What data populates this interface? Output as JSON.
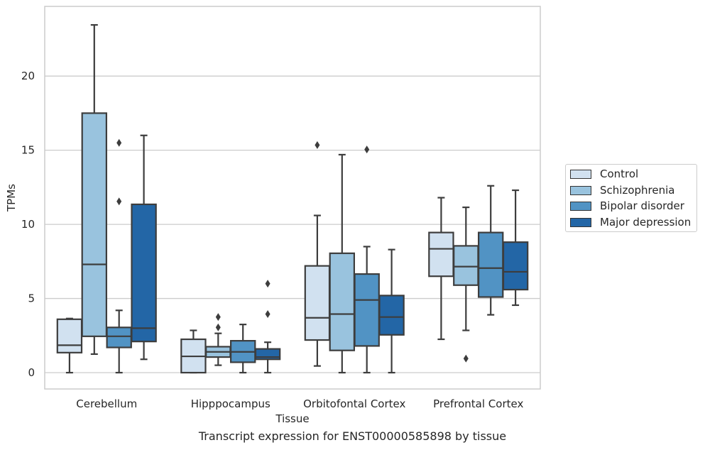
{
  "chart_data": {
    "type": "box",
    "title": "",
    "xlabel": "Tissue",
    "ylabel": "TPMs",
    "caption": "Transcript expression for ENST00000585898 by tissue",
    "ylim": [
      -1.1,
      24.7
    ],
    "yticks": [
      0,
      5,
      10,
      15,
      20
    ],
    "categories": [
      "Cerebellum",
      "Hipppocampus",
      "Orbitofontal Cortex",
      "Prefrontal Cortex"
    ],
    "grid": true,
    "legend_position": "right",
    "series": [
      {
        "name": "Control",
        "color": "#d1e1f0",
        "boxes": [
          {
            "whisker_low": 0.0,
            "q1": 1.35,
            "median": 1.85,
            "q3": 3.6,
            "whisker_high": 3.65,
            "outliers": []
          },
          {
            "whisker_low": 0.0,
            "q1": 0.0,
            "median": 1.1,
            "q3": 2.25,
            "whisker_high": 2.85,
            "outliers": []
          },
          {
            "whisker_low": 0.45,
            "q1": 2.2,
            "median": 3.7,
            "q3": 7.2,
            "whisker_high": 10.6,
            "outliers": [
              15.35
            ]
          },
          {
            "whisker_low": 2.25,
            "q1": 6.5,
            "median": 8.35,
            "q3": 9.45,
            "whisker_high": 11.8,
            "outliers": []
          }
        ]
      },
      {
        "name": "Schizophrenia",
        "color": "#99c3de",
        "boxes": [
          {
            "whisker_low": 1.25,
            "q1": 2.45,
            "median": 7.3,
            "q3": 17.5,
            "whisker_high": 23.45,
            "outliers": []
          },
          {
            "whisker_low": 0.5,
            "q1": 1.05,
            "median": 1.4,
            "q3": 1.75,
            "whisker_high": 2.65,
            "outliers": [
              3.05,
              3.75
            ]
          },
          {
            "whisker_low": 0.0,
            "q1": 1.5,
            "median": 3.95,
            "q3": 8.05,
            "whisker_high": 14.7,
            "outliers": []
          },
          {
            "whisker_low": 2.85,
            "q1": 5.9,
            "median": 7.15,
            "q3": 8.55,
            "whisker_high": 11.15,
            "outliers": [
              0.95
            ]
          }
        ]
      },
      {
        "name": "Bipolar disorder",
        "color": "#5193c4",
        "boxes": [
          {
            "whisker_low": 0.0,
            "q1": 1.7,
            "median": 2.45,
            "q3": 3.05,
            "whisker_high": 4.2,
            "outliers": [
              11.55,
              15.5
            ]
          },
          {
            "whisker_low": 0.0,
            "q1": 0.7,
            "median": 1.4,
            "q3": 2.15,
            "whisker_high": 3.25,
            "outliers": []
          },
          {
            "whisker_low": 0.0,
            "q1": 1.8,
            "median": 4.9,
            "q3": 6.65,
            "whisker_high": 8.5,
            "outliers": [
              15.05
            ]
          },
          {
            "whisker_low": 3.9,
            "q1": 5.1,
            "median": 7.05,
            "q3": 9.45,
            "whisker_high": 12.6,
            "outliers": []
          }
        ]
      },
      {
        "name": "Major depression",
        "color": "#2366a6",
        "boxes": [
          {
            "whisker_low": 0.9,
            "q1": 2.1,
            "median": 3.0,
            "q3": 11.35,
            "whisker_high": 16.0,
            "outliers": []
          },
          {
            "whisker_low": 0.0,
            "q1": 0.9,
            "median": 1.05,
            "q3": 1.6,
            "whisker_high": 2.05,
            "outliers": [
              3.95,
              6.0
            ]
          },
          {
            "whisker_low": 0.0,
            "q1": 2.55,
            "median": 3.75,
            "q3": 5.2,
            "whisker_high": 8.3,
            "outliers": []
          },
          {
            "whisker_low": 4.55,
            "q1": 5.6,
            "median": 6.8,
            "q3": 8.8,
            "whisker_high": 12.3,
            "outliers": []
          }
        ]
      }
    ]
  },
  "legend_items": [
    "Control",
    "Schizophrenia",
    "Bipolar disorder",
    "Major depression"
  ]
}
